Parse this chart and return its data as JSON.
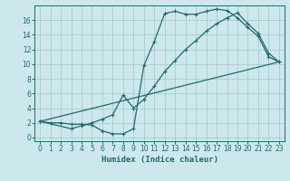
{
  "xlabel": "Humidex (Indice chaleur)",
  "bg_color": "#cce8ec",
  "grid_color": "#aacccc",
  "line_color": "#1e6b6b",
  "xlim": [
    -0.5,
    23.5
  ],
  "ylim": [
    -0.5,
    18
  ],
  "yticks": [
    0,
    2,
    4,
    6,
    8,
    10,
    12,
    14,
    16
  ],
  "xticks": [
    0,
    1,
    2,
    3,
    4,
    5,
    6,
    7,
    8,
    9,
    10,
    11,
    12,
    13,
    14,
    15,
    16,
    17,
    18,
    19,
    20,
    21,
    22,
    23
  ],
  "curve1_x": [
    0,
    1,
    2,
    3,
    4,
    5,
    6,
    7,
    8,
    9,
    10,
    11,
    12,
    13,
    14,
    15,
    16,
    17,
    18,
    19,
    20,
    21,
    22,
    23
  ],
  "curve1_y": [
    2.2,
    2.0,
    2.0,
    1.8,
    1.8,
    1.7,
    0.9,
    0.5,
    0.5,
    1.2,
    9.8,
    13.1,
    16.9,
    17.2,
    16.8,
    16.8,
    17.2,
    17.5,
    17.3,
    16.3,
    15.0,
    13.8,
    11.0,
    10.3
  ],
  "curve2_x": [
    0,
    3,
    4,
    5,
    6,
    7,
    8,
    9,
    10,
    11,
    12,
    13,
    14,
    15,
    16,
    17,
    18,
    19,
    20,
    21,
    22,
    23
  ],
  "curve2_y": [
    2.2,
    1.2,
    1.6,
    2.0,
    2.5,
    3.1,
    5.8,
    4.0,
    5.2,
    7.0,
    9.0,
    10.5,
    12.0,
    13.2,
    14.5,
    15.5,
    16.3,
    17.0,
    15.5,
    14.2,
    11.5,
    10.3
  ],
  "curve3_x": [
    0,
    23
  ],
  "curve3_y": [
    2.2,
    10.3
  ]
}
